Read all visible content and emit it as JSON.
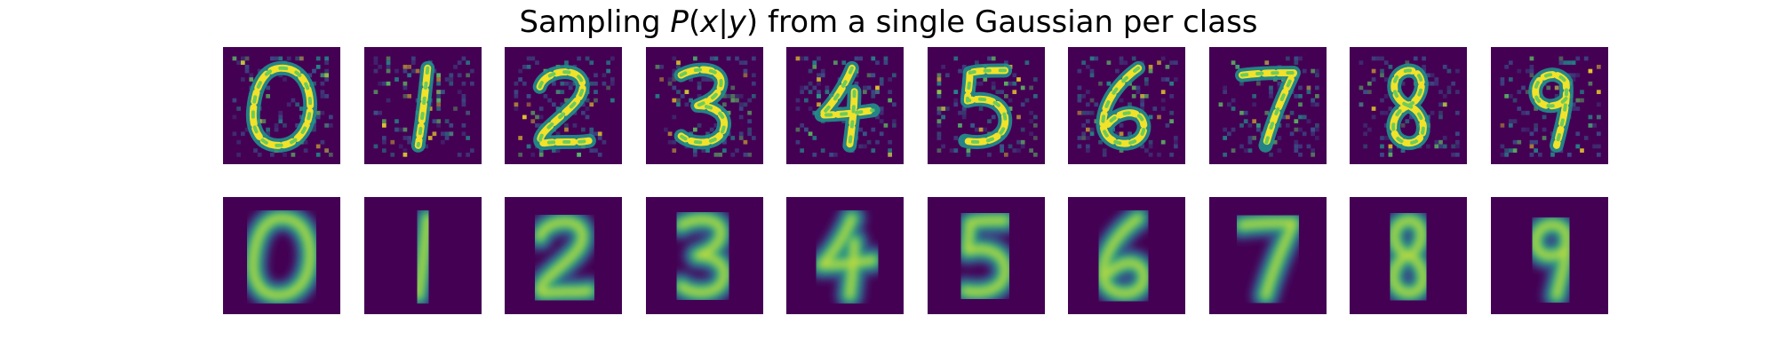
{
  "figure": {
    "title_prefix": "Sampling ",
    "title_math_P": "P",
    "title_math_open": "(",
    "title_math_x": "x",
    "title_math_bar": "|",
    "title_math_y": "y",
    "title_math_close": ")",
    "title_suffix": " from a single Gaussian per class"
  },
  "colormap": {
    "name": "viridis",
    "background": "#440154",
    "low": "#3b528b",
    "mid": "#21918c",
    "high": "#5ec962",
    "peak": "#fde725"
  },
  "rows": [
    {
      "name": "samples",
      "style": "noisy",
      "digits": [
        "0",
        "1",
        "2",
        "3",
        "4",
        "5",
        "6",
        "7",
        "8",
        "9"
      ]
    },
    {
      "name": "means",
      "style": "smooth",
      "digits": [
        "0",
        "1",
        "2",
        "3",
        "4",
        "5",
        "6",
        "7",
        "8",
        "9"
      ]
    }
  ]
}
